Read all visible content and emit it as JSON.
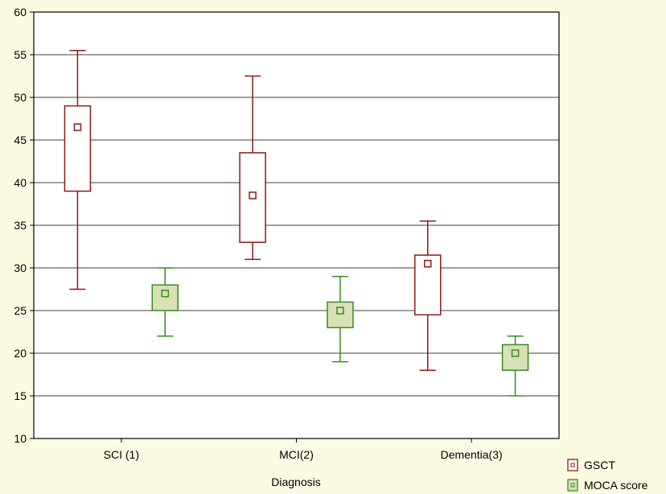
{
  "chart_data": {
    "type": "boxplot",
    "xlabel": "Diagnosis",
    "ylabel": "",
    "ylim": [
      10,
      60
    ],
    "yticks": [
      10,
      15,
      20,
      25,
      30,
      35,
      40,
      45,
      50,
      55,
      60
    ],
    "categories": [
      "SCI (1)",
      "MCI(2)",
      "Dementia(3)"
    ],
    "grid": true,
    "legend_position": "bottom-right",
    "series": [
      {
        "name": "GSCT",
        "color": "#8b1a1a",
        "fill": "#ffffff",
        "boxes": [
          {
            "mid": 46.5,
            "box_low": 39,
            "box_high": 49,
            "whisker_low": 27.5,
            "whisker_high": 55.5
          },
          {
            "mid": 38.5,
            "box_low": 33,
            "box_high": 43.5,
            "whisker_low": 31,
            "whisker_high": 52.5
          },
          {
            "mid": 30.5,
            "box_low": 24.5,
            "box_high": 31.5,
            "whisker_low": 18,
            "whisker_high": 35.5
          }
        ]
      },
      {
        "name": "MOCA score",
        "color": "#3a8a22",
        "fill": "#d7e1b5",
        "boxes": [
          {
            "mid": 27,
            "box_low": 25,
            "box_high": 28,
            "whisker_low": 22,
            "whisker_high": 30
          },
          {
            "mid": 25,
            "box_low": 23,
            "box_high": 26,
            "whisker_low": 19,
            "whisker_high": 29
          },
          {
            "mid": 20,
            "box_low": 18,
            "box_high": 21,
            "whisker_low": 15,
            "whisker_high": 22
          }
        ]
      }
    ]
  }
}
